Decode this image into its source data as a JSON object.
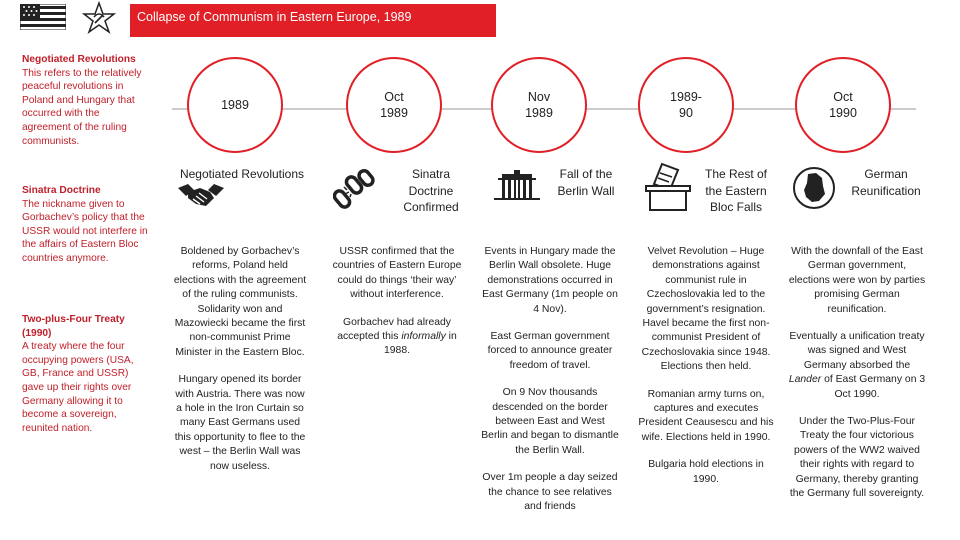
{
  "header": {
    "title": "Collapse of Communism in Eastern Europe, 1989",
    "colors": {
      "accent": "#e01f26",
      "sidebar_text": "#c0202a"
    }
  },
  "sidebar": [
    {
      "heading": "Negotiated Revolutions",
      "body": "This refers to the relatively peaceful revolutions in Poland and Hungary that occurred with the agreement of the ruling communists."
    },
    {
      "heading": "Sinatra Doctrine",
      "body": "The nickname given to Gorbachev’s policy that the USSR would not interfere in the affairs of Eastern Bloc countries anymore."
    },
    {
      "heading": "Two-plus-Four Treaty (1990)",
      "body": "A treaty where the four occupying powers (USA, GB, France and USSR) gave up their rights over Germany allowing it to become a sovereign, reunited nation."
    }
  ],
  "timeline": [
    {
      "date": "1989",
      "title": "Negotiated Revolutions",
      "icon": "handshake-icon"
    },
    {
      "date": "Oct 1989",
      "title": "Sinatra Doctrine Confirmed",
      "icon": "broken-chain-icon"
    },
    {
      "date": "Nov 1989",
      "title": "Fall of the Berlin Wall",
      "icon": "brandenburg-gate-icon"
    },
    {
      "date": "1989-90",
      "title": "The Rest of the Eastern Bloc Falls",
      "icon": "ballot-box-icon"
    },
    {
      "date": "Oct 1990",
      "title": "German Reunification",
      "icon": "germany-map-icon"
    }
  ],
  "columns": {
    "col1": {
      "p1": "Boldened by Gorbachev’s reforms, Poland held elections with the agreement of the ruling communists. Solidarity won and Mazowiecki became the first non-communist Prime Minister in the Eastern Bloc.",
      "p2": "Hungary opened its border with Austria. There was now a hole in the Iron Curtain so many East Germans used this opportunity to flee to the west – the Berlin Wall was now useless."
    },
    "col2": {
      "p1": "USSR confirmed that the countries of Eastern Europe could do things ‘their way’ without interference.",
      "p2_pre": "Gorbachev had already accepted this ",
      "p2_em": "informally",
      "p2_post": " in 1988."
    },
    "col3": {
      "p1": "Events in Hungary made the Berlin Wall obsolete. Huge demonstrations occurred in East Germany (1m people on 4 Nov).",
      "p2": "East German government forced to announce greater freedom of travel.",
      "p3": "On 9 Nov thousands descended on the border between East and West Berlin and began to dismantle the Berlin Wall.",
      "p4": "Over 1m people a day seized the chance to see relatives and friends"
    },
    "col4": {
      "p1_bold": "Velvet Revolution",
      "p1_rest": " – Huge demonstrations against communist rule in Czechoslovakia led to the government’s resignation. Havel became the first non-communist President of Czechoslovakia since 1948. Elections then held.",
      "p2": "Romanian army turns on, captures and executes President Ceausescu and his wife. Elections held in 1990.",
      "p3": "Bulgaria hold elections in 1990."
    },
    "col5": {
      "p1": "With the downfall of the East German government, elections were won by parties promising German reunification.",
      "p2_pre": "Eventually a unification treaty was signed and West Germany absorbed the ",
      "p2_em": "Lander",
      "p2_post": " of East Germany on 3 Oct 1990.",
      "p3": "Under the Two-Plus-Four Treaty the four victorious powers of the WW2 waived their rights with regard to Germany, thereby granting the Germany full sovereignty."
    }
  }
}
